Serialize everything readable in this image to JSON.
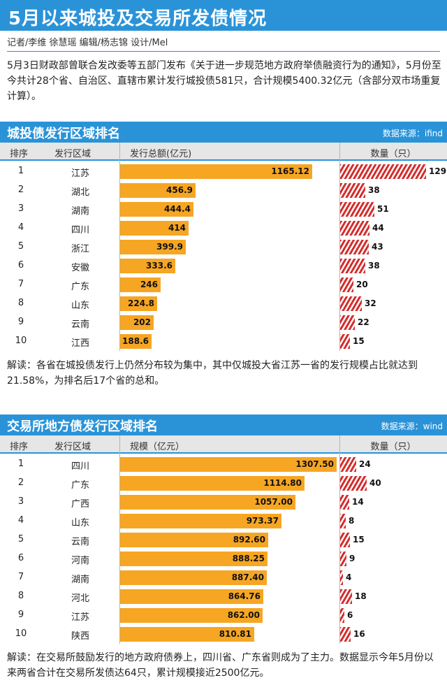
{
  "header": {
    "title": "5月以来城投及交易所发债情况",
    "credits": "记者/李维 徐慧瑶  编辑/杨志锦 设计/Mel"
  },
  "intro": "5月3日财政部曾联合发改委等五部门发布《关于进一步规范地方政府举债融资行为的通知》，5月份至今共计28个省、自治区、直辖市累计发行城投债581只，合计规模5400.32亿元（含部分双市场重复计算）。",
  "chart_data": [
    {
      "type": "table",
      "title": "城投债发行区域排名",
      "source": "数据来源：ifind",
      "columns": [
        "排序",
        "发行区域",
        "发行总额(亿元)",
        "数量（只）"
      ],
      "rows": [
        {
          "rank": "1",
          "region": "江苏",
          "amount": 1165.12,
          "amount_label": "1165.12",
          "count": 129
        },
        {
          "rank": "2",
          "region": "湖北",
          "amount": 456.9,
          "amount_label": "456.9",
          "count": 38
        },
        {
          "rank": "3",
          "region": "湖南",
          "amount": 444.4,
          "amount_label": "444.4",
          "count": 51
        },
        {
          "rank": "4",
          "region": "四川",
          "amount": 414,
          "amount_label": "414",
          "count": 44
        },
        {
          "rank": "5",
          "region": "浙江",
          "amount": 399.9,
          "amount_label": "399.9",
          "count": 43
        },
        {
          "rank": "6",
          "region": "安徽",
          "amount": 333.6,
          "amount_label": "333.6",
          "count": 38
        },
        {
          "rank": "7",
          "region": "广东",
          "amount": 246,
          "amount_label": "246",
          "count": 20
        },
        {
          "rank": "8",
          "region": "山东",
          "amount": 224.8,
          "amount_label": "224.8",
          "count": 32
        },
        {
          "rank": "9",
          "region": "云南",
          "amount": 202,
          "amount_label": "202",
          "count": 22
        },
        {
          "rank": "10",
          "region": "江西",
          "amount": 188.6,
          "amount_label": "188.6",
          "count": 15
        }
      ],
      "bar_color": "#f6a623",
      "count_color": "#d42e2e"
    },
    {
      "type": "table",
      "title": "交易所地方债发行区域排名",
      "source": "数据来源：wind",
      "columns": [
        "排序",
        "发行区域",
        "规模（亿元）",
        "数量（只）"
      ],
      "rows": [
        {
          "rank": "1",
          "region": "四川",
          "amount": 1307.5,
          "amount_label": "1307.50",
          "count": 24
        },
        {
          "rank": "2",
          "region": "广东",
          "amount": 1114.8,
          "amount_label": "1114.80",
          "count": 40
        },
        {
          "rank": "3",
          "region": "广西",
          "amount": 1057.0,
          "amount_label": "1057.00",
          "count": 14
        },
        {
          "rank": "4",
          "region": "山东",
          "amount": 973.37,
          "amount_label": "973.37",
          "count": 8
        },
        {
          "rank": "5",
          "region": "云南",
          "amount": 892.6,
          "amount_label": "892.60",
          "count": 15
        },
        {
          "rank": "6",
          "region": "河南",
          "amount": 888.25,
          "amount_label": "888.25",
          "count": 9
        },
        {
          "rank": "7",
          "region": "湖南",
          "amount": 887.4,
          "amount_label": "887.40",
          "count": 4
        },
        {
          "rank": "8",
          "region": "河北",
          "amount": 864.76,
          "amount_label": "864.76",
          "count": 18
        },
        {
          "rank": "9",
          "region": "江苏",
          "amount": 862.0,
          "amount_label": "862.00",
          "count": 6
        },
        {
          "rank": "10",
          "region": "陕西",
          "amount": 810.81,
          "amount_label": "810.81",
          "count": 16
        }
      ],
      "bar_color": "#f6a623",
      "count_color": "#d42e2e"
    }
  ],
  "commentary": [
    "解读：各省在城投债发行上仍然分布较为集中，其中仅城投大省江苏一省的发行规模占比就达到21.58%，为排名后17个省的总和。",
    "解读：在交易所鼓励发行的地方政府债券上，四川省、广东省则成为了主力。数据显示今年5月份以来两省合计在交易所发债达64只，累计规模接近2500亿元。"
  ]
}
